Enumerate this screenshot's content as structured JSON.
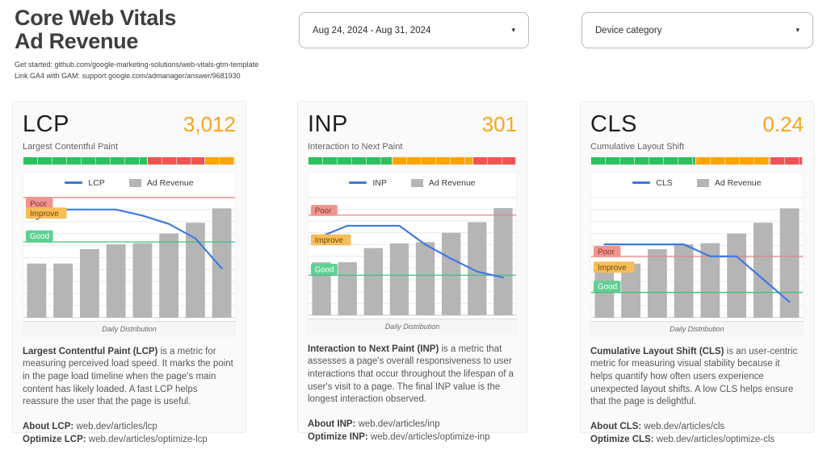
{
  "header": {
    "title_line1": "Core Web Vitals",
    "title_line2": "Ad Revenue",
    "subtitle1": "Get started: github.com/google-marketing-solutions/web-vitals-gtm-template",
    "subtitle2": "Link GA4 with GAM: support.google.com/admanager/answer/9681930"
  },
  "filters": {
    "date_range": {
      "value": "Aug 24, 2024 - Aug 31, 2024",
      "caret": "▾"
    },
    "device_category": {
      "value": "Device category",
      "caret": "▾"
    }
  },
  "colors": {
    "accent_orange": "#fba31b",
    "green": "#2bc15c",
    "red": "#f15352",
    "orange": "#ffa400",
    "bar_gray": "#b5b5b5",
    "line_blue": "#3d79e6",
    "poor_line": "#e8837e",
    "good_line": "#41c183",
    "poor_label_bg": "#f2948e",
    "poor_label_text": "#7c3a33",
    "improve_label_bg": "#f7bd57",
    "improve_label_text": "#6f4b13",
    "good_label_bg": "#5fd093",
    "good_label_text": "#ffffff",
    "gridline": "#e9e9e9",
    "axis": "#c9c9c9"
  },
  "cards": [
    {
      "title": "LCP",
      "value": "3,012",
      "subtitle": "Largest Contentful Paint",
      "distribution": [
        {
          "color": "green",
          "pct": 58.6
        },
        {
          "color": "red",
          "pct": 27.3
        },
        {
          "color": "orange",
          "pct": 14.1
        }
      ],
      "xlabel": "Daily Distribution",
      "desc_bold": "Largest Contentful Paint (LCP)",
      "desc_rest": " is a metric for measuring perceived load speed. It marks the point in the page load timeline when the page's main content has likely loaded. A fast LCP helps reassure the user that the page is useful.",
      "about_label": "About LCP:",
      "about_url": " web.dev/articles/lcp",
      "optimize_label": "Optimize LCP:",
      "optimize_url": " web.dev/articles/optimize-lcp"
    },
    {
      "title": "INP",
      "value": "301",
      "subtitle": "Interaction to Next Paint",
      "distribution": [
        {
          "color": "green",
          "pct": 40.4
        },
        {
          "color": "orange",
          "pct": 38.8
        },
        {
          "color": "red",
          "pct": 20.8
        }
      ],
      "xlabel": "Daily Distribution",
      "desc_bold": "Interaction to Next Paint (INP)",
      "desc_rest": " is a metric that assesses a page's overall responsiveness to user interactions that occur throughout the lifespan of a user's visit to a page. The final INP value is the longest interaction observed.",
      "about_label": "About INP:",
      "about_url": " web.dev/articles/inp",
      "optimize_label": "Optimize INP:",
      "optimize_url": " web.dev/articles/optimize-inp"
    },
    {
      "title": "CLS",
      "value": "0.24",
      "subtitle": "Cumulative Layout Shift",
      "distribution": [
        {
          "color": "green",
          "pct": 49.8
        },
        {
          "color": "orange",
          "pct": 34.9
        },
        {
          "color": "red",
          "pct": 15.3
        }
      ],
      "xlabel": "Daily Distribution",
      "desc_bold": "Cumulative Layout Shift (CLS)",
      "desc_rest": " is an user-centric metric for measuring visual stability because it helps quantify how often users experience unexpected layout shifts. A low CLS helps ensure that the page is delightful.",
      "about_label": "About CLS:",
      "about_url": " web.dev/articles/cls",
      "optimize_label": "Optimize CLS:",
      "optimize_url": " web.dev/articles/optimize-cls"
    }
  ],
  "chart_data": [
    {
      "type": "bar+line",
      "title": "LCP vs Ad Revenue daily",
      "xlabel": "Daily Distribution",
      "x_count": 8,
      "y_units": "relative 0-100 (axis unlabeled; values estimated from pixel heights)",
      "grid": true,
      "legend_position": "top-center",
      "series": [
        {
          "name": "LCP",
          "type": "line",
          "values": [
            82,
            90,
            90,
            90,
            85,
            78,
            66,
            41
          ]
        },
        {
          "name": "Ad Revenue",
          "type": "bar",
          "values": [
            45,
            45,
            57,
            61,
            62,
            70,
            79,
            91
          ]
        }
      ],
      "threshold_lines": [
        {
          "label": "Poor",
          "value": 100
        },
        {
          "label": "Good",
          "value": 63
        }
      ],
      "annotations": [
        {
          "text": "Poor",
          "v": 95
        },
        {
          "text": "Improve",
          "v": 87
        },
        {
          "text": "Good",
          "v": 68
        }
      ]
    },
    {
      "type": "bar+line",
      "title": "INP vs Ad Revenue daily",
      "xlabel": "Daily Distribution",
      "x_count": 8,
      "y_units": "relative 0-100 (axis unlabeled; values estimated from pixel heights)",
      "grid": true,
      "legend_position": "top-center",
      "series": [
        {
          "name": "INP",
          "type": "line",
          "values": [
            67,
            76,
            76,
            76,
            60,
            48,
            37,
            32
          ]
        },
        {
          "name": "Ad Revenue",
          "type": "bar",
          "values": [
            45,
            45,
            57,
            61,
            62,
            70,
            79,
            91
          ]
        }
      ],
      "threshold_lines": [
        {
          "label": "Poor",
          "value": 85
        },
        {
          "label": "Good",
          "value": 34
        }
      ],
      "annotations": [
        {
          "text": "Poor",
          "v": 89
        },
        {
          "text": "Improve",
          "v": 64
        },
        {
          "text": "Good",
          "v": 39
        }
      ]
    },
    {
      "type": "bar+line",
      "title": "CLS vs Ad Revenue daily",
      "xlabel": "Daily Distribution",
      "x_count": 8,
      "y_units": "relative 0-100 (axis unlabeled; values estimated from pixel heights)",
      "grid": true,
      "legend_position": "top-center",
      "series": [
        {
          "name": "CLS",
          "type": "line",
          "values": [
            61,
            61,
            61,
            61,
            51,
            51,
            32,
            13
          ]
        },
        {
          "name": "Ad Revenue",
          "type": "bar",
          "values": [
            45,
            45,
            57,
            61,
            62,
            70,
            79,
            91
          ]
        }
      ],
      "threshold_lines": [
        {
          "label": "Poor",
          "value": 51
        },
        {
          "label": "Good",
          "value": 21
        }
      ],
      "annotations": [
        {
          "text": "Poor",
          "v": 55
        },
        {
          "text": "Improve",
          "v": 42
        },
        {
          "text": "Good",
          "v": 26
        }
      ]
    }
  ]
}
